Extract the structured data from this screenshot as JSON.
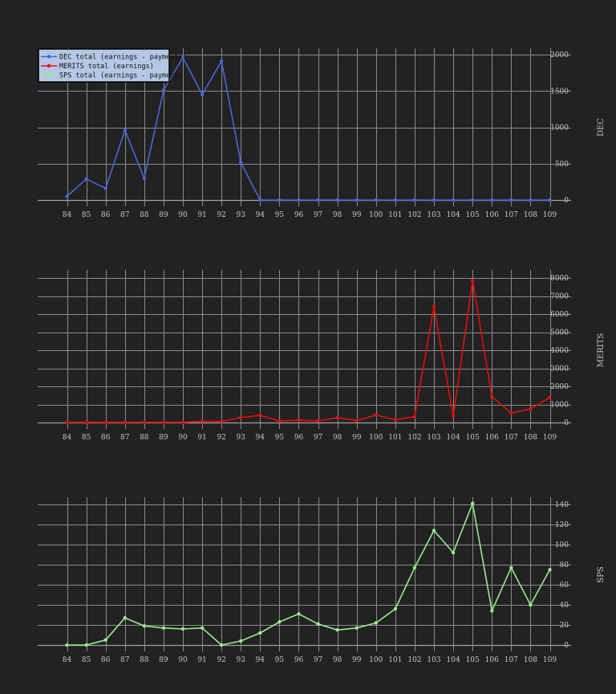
{
  "colors": {
    "background": "#222222",
    "grid": "#8a8a8a",
    "text": "#c8c8c8",
    "legend_bg": "#b4c8e6"
  },
  "chart_data": [
    {
      "type": "line",
      "ylabel": "DEC",
      "color": "#4a66d8",
      "x": [
        "84",
        "85",
        "86",
        "87",
        "88",
        "89",
        "90",
        "91",
        "92",
        "93",
        "94",
        "95",
        "96",
        "97",
        "98",
        "99",
        "100",
        "101",
        "102",
        "103",
        "104",
        "105",
        "106",
        "107",
        "108",
        "109"
      ],
      "values": [
        50,
        290,
        160,
        960,
        300,
        1510,
        1960,
        1450,
        1910,
        520,
        0,
        0,
        0,
        0,
        0,
        0,
        0,
        0,
        0,
        0,
        0,
        0,
        0,
        0,
        0,
        0
      ],
      "ylim": [
        0,
        2000
      ],
      "yticks": [
        0,
        500,
        1000,
        1500,
        2000
      ],
      "grid": true,
      "legend": {
        "placement": "top-left",
        "entries": [
          {
            "label": "DEC total (earnings - payments)",
            "color": "#4a66d8"
          },
          {
            "label": "MERITS  total (earnings)",
            "color": "#e01010"
          },
          {
            "label": "SPS total (earnings - payments)",
            "color": "#98ec8c"
          }
        ]
      }
    },
    {
      "type": "line",
      "ylabel": "MERITS",
      "color": "#e01010",
      "x": [
        "84",
        "85",
        "86",
        "87",
        "88",
        "89",
        "90",
        "91",
        "92",
        "93",
        "94",
        "95",
        "96",
        "97",
        "98",
        "99",
        "100",
        "101",
        "102",
        "103",
        "104",
        "105",
        "106",
        "107",
        "108",
        "109"
      ],
      "values": [
        10,
        10,
        10,
        10,
        10,
        10,
        10,
        60,
        60,
        270,
        400,
        80,
        130,
        90,
        270,
        100,
        420,
        150,
        330,
        6400,
        350,
        7850,
        1430,
        520,
        760,
        1380
      ],
      "ylim": [
        0,
        8000
      ],
      "yticks": [
        0,
        1000,
        2000,
        3000,
        4000,
        5000,
        6000,
        7000,
        8000
      ],
      "grid": true
    },
    {
      "type": "line",
      "ylabel": "SPS",
      "color": "#98ec8c",
      "x": [
        "84",
        "85",
        "86",
        "87",
        "88",
        "89",
        "90",
        "91",
        "92",
        "93",
        "94",
        "95",
        "96",
        "97",
        "98",
        "99",
        "100",
        "101",
        "102",
        "103",
        "104",
        "105",
        "106",
        "107",
        "108",
        "109"
      ],
      "values": [
        0,
        0,
        5,
        27,
        19,
        17,
        16,
        17,
        0,
        4,
        12,
        23,
        31,
        21,
        15,
        17,
        22,
        36,
        77,
        114,
        92,
        141,
        34,
        77,
        40,
        75
      ],
      "ylim": [
        0,
        140
      ],
      "yticks": [
        0,
        20,
        40,
        60,
        80,
        100,
        120,
        140
      ],
      "grid": true
    }
  ]
}
